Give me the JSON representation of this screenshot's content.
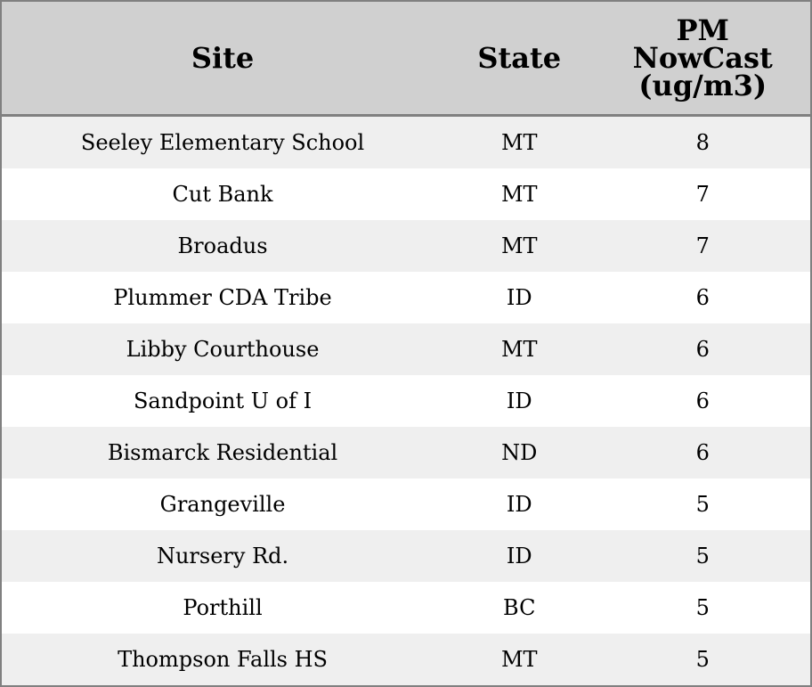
{
  "table": {
    "headers": [
      "Site",
      "State",
      "PM NowCast (ug/m3)"
    ],
    "header_lines": [
      "PM",
      "NowCast",
      "(ug/m3)"
    ],
    "rows": [
      [
        "Seeley Elementary School",
        "MT",
        "8"
      ],
      [
        "Cut Bank",
        "MT",
        "7"
      ],
      [
        "Broadus",
        "MT",
        "7"
      ],
      [
        "Plummer CDA Tribe",
        "ID",
        "6"
      ],
      [
        "Libby Courthouse",
        "MT",
        "6"
      ],
      [
        "Sandpoint U of I",
        "ID",
        "6"
      ],
      [
        "Bismarck Residential",
        "ND",
        "6"
      ],
      [
        "Grangeville",
        "ID",
        "5"
      ],
      [
        "Nursery Rd.",
        "ID",
        "5"
      ],
      [
        "Porthill",
        "BC",
        "5"
      ],
      [
        "Thompson Falls HS",
        "MT",
        "5"
      ]
    ]
  },
  "colors": {
    "header_bg": "#d0d0d0",
    "stripe_bg": "#efefef",
    "border": "#808080"
  }
}
